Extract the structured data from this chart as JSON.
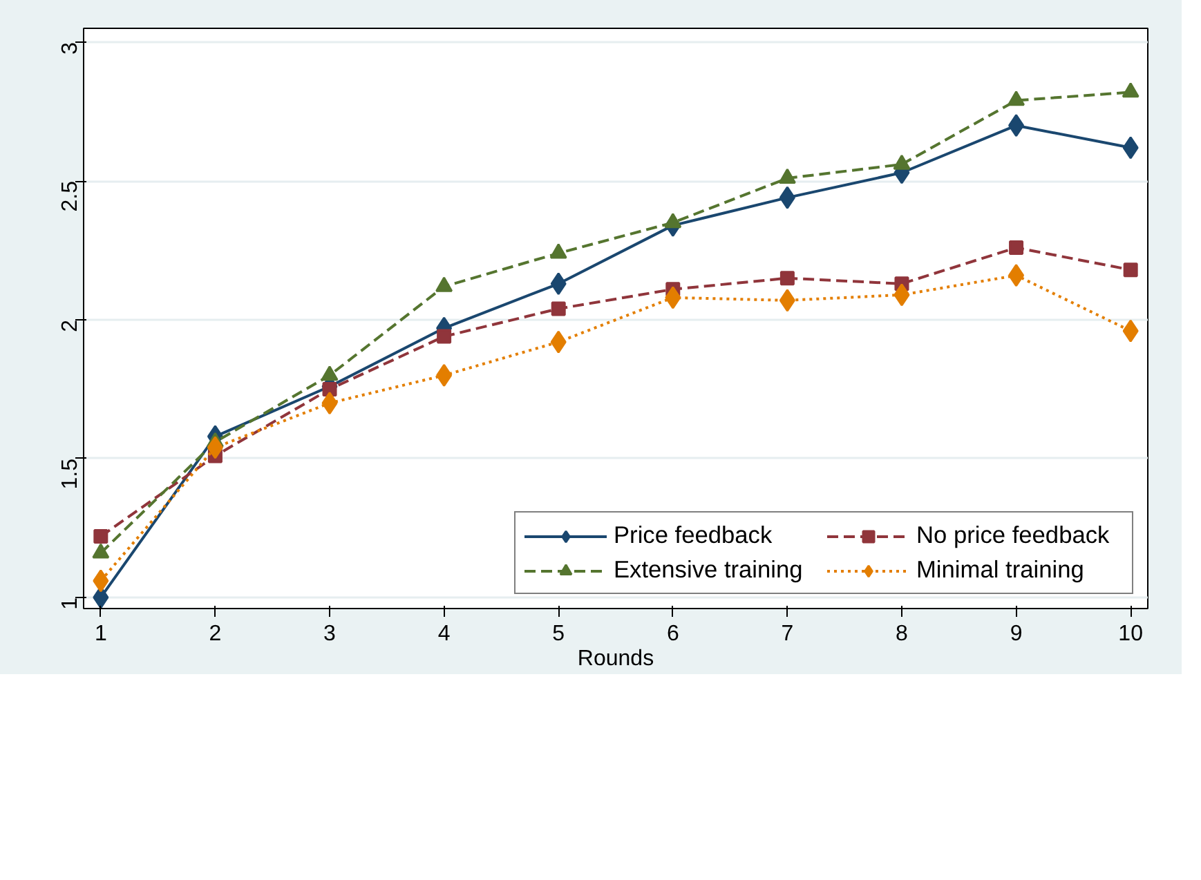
{
  "chart_data": {
    "type": "line",
    "xlabel": "Rounds",
    "x": [
      1,
      2,
      3,
      4,
      5,
      6,
      7,
      8,
      9,
      10
    ],
    "series": [
      {
        "name": "Price feedback",
        "color": "#1a476f",
        "marker": "diamond",
        "line_style": "solid",
        "values": [
          1.0,
          1.58,
          1.76,
          1.97,
          2.13,
          2.34,
          2.44,
          2.53,
          2.7,
          2.62
        ]
      },
      {
        "name": "No price feedback",
        "color": "#90353b",
        "marker": "square",
        "line_style": "dashed",
        "values": [
          1.22,
          1.51,
          1.75,
          1.94,
          2.04,
          2.11,
          2.15,
          2.13,
          2.26,
          2.18
        ]
      },
      {
        "name": "Extensive training",
        "color": "#55752f",
        "marker": "triangle",
        "line_style": "dashed",
        "values": [
          1.16,
          1.56,
          1.8,
          2.12,
          2.24,
          2.35,
          2.51,
          2.56,
          2.79,
          2.82
        ]
      },
      {
        "name": "Minimal training",
        "color": "#e37e00",
        "marker": "diamond",
        "line_style": "dotted",
        "values": [
          1.06,
          1.54,
          1.7,
          1.8,
          1.92,
          2.08,
          2.07,
          2.09,
          2.16,
          1.96
        ]
      }
    ],
    "xlim": [
      0.85,
      10.15
    ],
    "xticks": [
      1,
      2,
      3,
      4,
      5,
      6,
      7,
      8,
      9,
      10
    ],
    "ylim": [
      0.96,
      3.05
    ],
    "yticks": [
      1,
      1.5,
      2,
      2.5,
      3
    ],
    "grid": "y",
    "legend": "bottom right"
  }
}
